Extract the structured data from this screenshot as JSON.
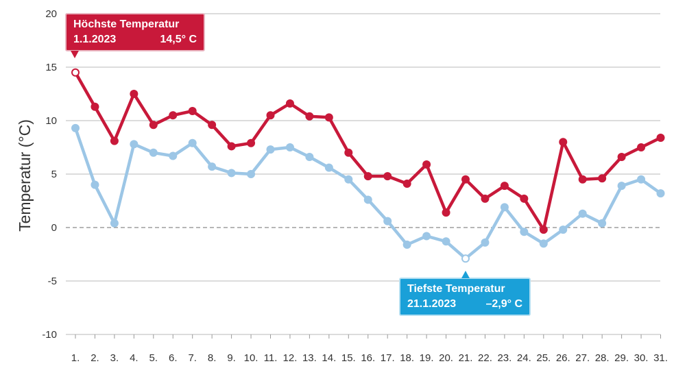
{
  "chart_data": {
    "type": "line",
    "ylabel": "Temperatur (°C)",
    "xlabel": "",
    "ylim": [
      -10,
      20
    ],
    "yticks": [
      "-10",
      "-5",
      "0",
      "5",
      "10",
      "15",
      "20"
    ],
    "categories": [
      "1.",
      "2.",
      "3.",
      "4.",
      "5.",
      "6.",
      "7.",
      "8.",
      "9.",
      "10.",
      "11.",
      "12.",
      "13.",
      "14.",
      "15.",
      "16.",
      "17.",
      "18.",
      "19.",
      "20.",
      "21.",
      "22.",
      "23.",
      "24.",
      "25.",
      "26.",
      "27.",
      "28.",
      "29.",
      "30.",
      "31."
    ],
    "series": [
      {
        "color": "#c8193a",
        "values": [
          14.5,
          11.3,
          8.1,
          12.5,
          9.6,
          10.5,
          10.9,
          9.6,
          7.6,
          7.9,
          10.5,
          11.6,
          10.4,
          10.3,
          7.0,
          4.8,
          4.8,
          4.1,
          5.9,
          1.4,
          4.5,
          2.7,
          3.9,
          2.7,
          -0.2,
          8.0,
          4.5,
          4.6,
          6.6,
          7.5,
          8.4
        ]
      },
      {
        "color": "#9cc6e6",
        "values": [
          9.3,
          4.0,
          0.4,
          7.8,
          7.0,
          6.7,
          7.9,
          5.7,
          5.1,
          5.0,
          7.3,
          7.5,
          6.6,
          5.6,
          4.5,
          2.6,
          0.6,
          -1.6,
          -0.8,
          -1.3,
          -2.9,
          -1.4,
          1.9,
          -0.4,
          -1.5,
          -0.2,
          1.3,
          0.4,
          3.9,
          4.5,
          3.2
        ]
      }
    ],
    "highlights": [
      {
        "series": 0,
        "index": 0
      },
      {
        "series": 1,
        "index": 20
      }
    ],
    "zero_line": "dashed",
    "grid": true
  },
  "annotations": {
    "max": {
      "title": "Höchste Temperatur",
      "date": "1.1.2023",
      "value": "14,5° C",
      "color": "#c8193a"
    },
    "min": {
      "title": "Tiefste Temperatur",
      "date": "21.1.2023",
      "value": "–2,9° C",
      "color": "#1aa0d8"
    }
  }
}
